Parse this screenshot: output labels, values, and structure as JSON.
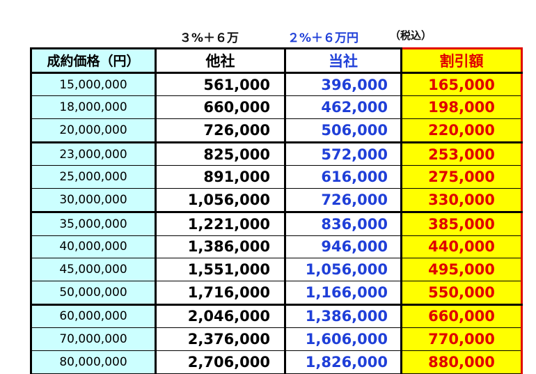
{
  "labels": {
    "other_formula": "３%＋６万",
    "ours_formula": "２%＋６万円",
    "tax_note": "（税込）"
  },
  "table": {
    "headers": [
      "成約価格（円）",
      "他社",
      "当社",
      "割引額"
    ],
    "rows": [
      [
        "15,000,000",
        "561,000",
        "396,000",
        "165,000"
      ],
      [
        "18,000,000",
        "660,000",
        "462,000",
        "198,000"
      ],
      [
        "20,000,000",
        "726,000",
        "506,000",
        "220,000"
      ],
      [
        "23,000,000",
        "825,000",
        "572,000",
        "253,000"
      ],
      [
        "25,000,000",
        "891,000",
        "616,000",
        "275,000"
      ],
      [
        "30,000,000",
        "1,056,000",
        "726,000",
        "330,000"
      ],
      [
        "35,000,000",
        "1,221,000",
        "836,000",
        "385,000"
      ],
      [
        "40,000,000",
        "1,386,000",
        "946,000",
        "440,000"
      ],
      [
        "45,000,000",
        "1,551,000",
        "1,056,000",
        "495,000"
      ],
      [
        "50,000,000",
        "1,716,000",
        "1,166,000",
        "550,000"
      ],
      [
        "60,000,000",
        "2,046,000",
        "1,386,000",
        "660,000"
      ],
      [
        "70,000,000",
        "2,376,000",
        "1,606,000",
        "770,000"
      ],
      [
        "80,000,000",
        "2,706,000",
        "1,826,000",
        "880,000"
      ]
    ]
  },
  "colors": {
    "price_bg": "#ccffff",
    "ours_text": "#1f3fd8",
    "discount_bg": "#ffff00",
    "discount_text": "#e00000"
  }
}
